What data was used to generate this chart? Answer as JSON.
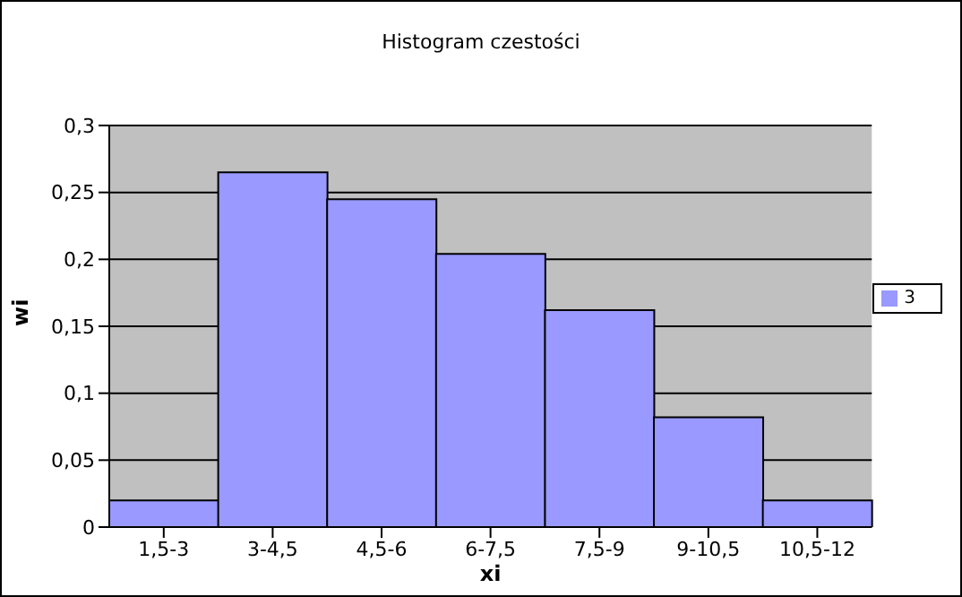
{
  "chart_data": {
    "type": "bar",
    "title": "Histogram czestości",
    "xlabel": "xi",
    "ylabel": "wi",
    "categories": [
      "1,5-3",
      "3-4,5",
      "4,5-6",
      "6-7,5",
      "7,5-9",
      "9-10,5",
      "10,5-12"
    ],
    "series": [
      {
        "name": "3",
        "color": "#9999ff",
        "values": [
          0.02,
          0.265,
          0.245,
          0.204,
          0.162,
          0.082,
          0.02
        ]
      }
    ],
    "ylim": [
      0,
      0.3
    ],
    "yticks": [
      {
        "value": 0,
        "label": "0"
      },
      {
        "value": 0.05,
        "label": "0,05"
      },
      {
        "value": 0.1,
        "label": "0,1"
      },
      {
        "value": 0.15,
        "label": "0,15"
      },
      {
        "value": 0.2,
        "label": "0,2"
      },
      {
        "value": 0.25,
        "label": "0,25"
      },
      {
        "value": 0.3,
        "label": "0,3"
      }
    ],
    "grid": "y",
    "legend": "right"
  }
}
